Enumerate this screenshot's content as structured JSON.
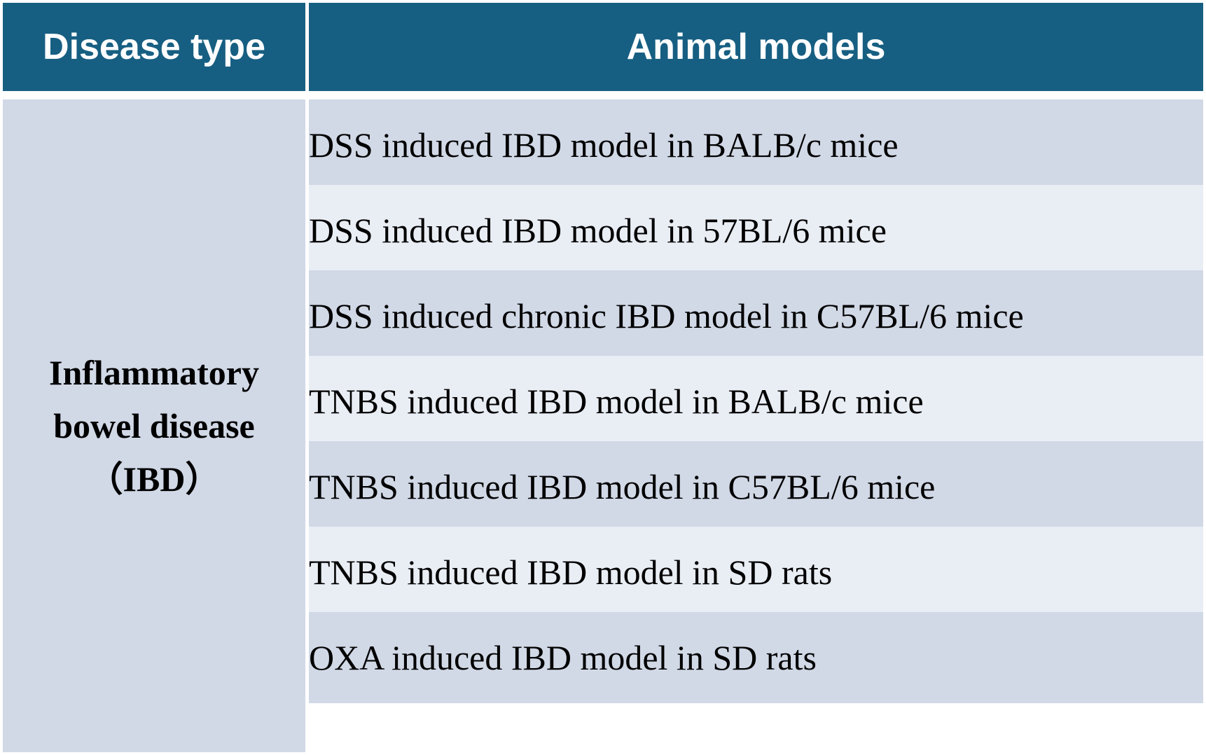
{
  "header": {
    "disease_type": "Disease type",
    "animal_models": "Animal models"
  },
  "disease": {
    "name": "Inflammatory\nbowel disease\n（IBD）"
  },
  "models": [
    "DSS induced IBD model in BALB/c mice",
    "DSS induced IBD model in 57BL/6 mice",
    "DSS induced chronic IBD model in C57BL/6 mice",
    "TNBS induced IBD model in BALB/c mice",
    "TNBS induced IBD model in C57BL/6 mice",
    "TNBS induced IBD model in SD rats",
    "OXA induced IBD model in SD rats"
  ],
  "colors": {
    "header_bg": "#175f82",
    "header_text": "#ffffff",
    "row_dark": "#d1d8e6",
    "row_light": "#e9edf4"
  }
}
